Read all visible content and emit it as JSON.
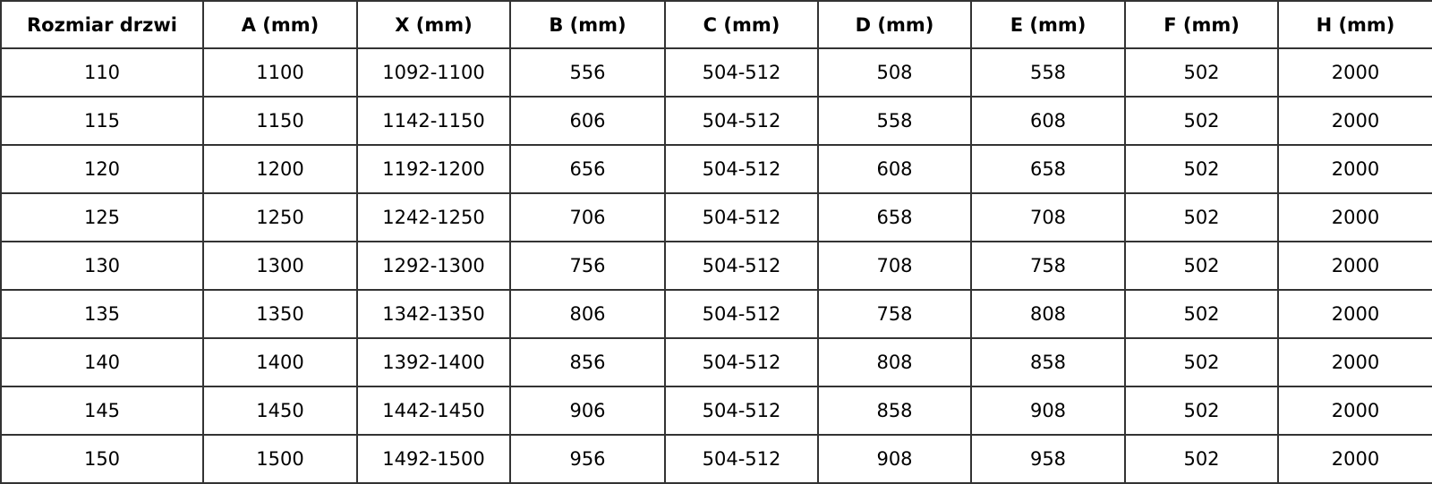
{
  "table": {
    "headers": [
      "Rozmiar drzwi",
      "A (mm)",
      "X (mm)",
      "B (mm)",
      "C (mm)",
      "D (mm)",
      "E (mm)",
      "F (mm)",
      "H (mm)"
    ],
    "rows": [
      [
        "110",
        "1100",
        "1092-1100",
        "556",
        "504-512",
        "508",
        "558",
        "502",
        "2000"
      ],
      [
        "115",
        "1150",
        "1142-1150",
        "606",
        "504-512",
        "558",
        "608",
        "502",
        "2000"
      ],
      [
        "120",
        "1200",
        "1192-1200",
        "656",
        "504-512",
        "608",
        "658",
        "502",
        "2000"
      ],
      [
        "125",
        "1250",
        "1242-1250",
        "706",
        "504-512",
        "658",
        "708",
        "502",
        "2000"
      ],
      [
        "130",
        "1300",
        "1292-1300",
        "756",
        "504-512",
        "708",
        "758",
        "502",
        "2000"
      ],
      [
        "135",
        "1350",
        "1342-1350",
        "806",
        "504-512",
        "758",
        "808",
        "502",
        "2000"
      ],
      [
        "140",
        "1400",
        "1392-1400",
        "856",
        "504-512",
        "808",
        "858",
        "502",
        "2000"
      ],
      [
        "145",
        "1450",
        "1442-1450",
        "906",
        "504-512",
        "858",
        "908",
        "502",
        "2000"
      ],
      [
        "150",
        "1500",
        "1492-1500",
        "956",
        "504-512",
        "908",
        "958",
        "502",
        "2000"
      ]
    ]
  }
}
